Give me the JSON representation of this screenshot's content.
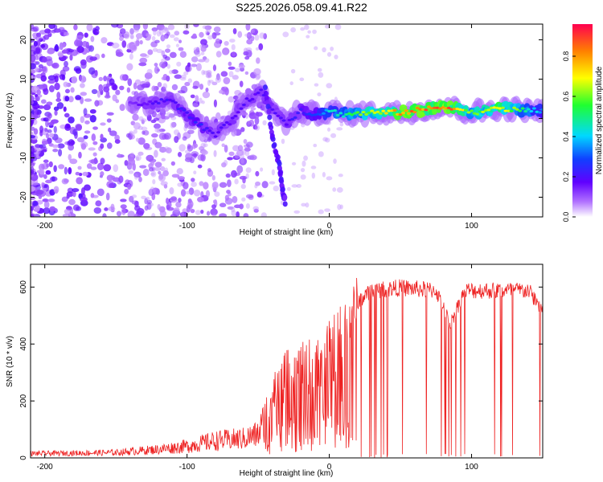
{
  "title": "S225.2026.058.09.41.R22",
  "chart_data": [
    {
      "type": "heatmap",
      "xlabel": "Height of straight line (km)",
      "ylabel": "Frequency (Hz)",
      "xlim": [
        -210,
        150
      ],
      "ylim": [
        -25,
        24
      ],
      "xticks": [
        -200,
        -100,
        0,
        100
      ],
      "yticks": [
        -20,
        -10,
        0,
        10,
        20
      ],
      "colorbar": {
        "label": "Normalized spectral amplitude",
        "range": [
          0,
          0.96
        ],
        "ticks": [
          0.0,
          0.2,
          0.4,
          0.6,
          0.8
        ]
      },
      "ridge": [
        {
          "x": -140,
          "y": 4,
          "v": 0.15
        },
        {
          "x": -125,
          "y": 4,
          "v": 0.2
        },
        {
          "x": -112,
          "y": 5,
          "v": 0.22
        },
        {
          "x": -100,
          "y": 1,
          "v": 0.25
        },
        {
          "x": -90,
          "y": -2,
          "v": 0.25
        },
        {
          "x": -80,
          "y": -4,
          "v": 0.2
        },
        {
          "x": -70,
          "y": -1,
          "v": 0.2
        },
        {
          "x": -60,
          "y": 4,
          "v": 0.2
        },
        {
          "x": -48,
          "y": 7,
          "v": 0.2
        },
        {
          "x": -40,
          "y": 2,
          "v": 0.2
        },
        {
          "x": -30,
          "y": -1,
          "v": 0.2
        },
        {
          "x": -20,
          "y": 2,
          "v": 0.25
        },
        {
          "x": -10,
          "y": 1,
          "v": 0.3
        },
        {
          "x": 0,
          "y": 2,
          "v": 0.45
        },
        {
          "x": 10,
          "y": 1,
          "v": 0.5
        },
        {
          "x": 30,
          "y": 1.5,
          "v": 0.7
        },
        {
          "x": 50,
          "y": 1.5,
          "v": 0.85
        },
        {
          "x": 70,
          "y": 2.5,
          "v": 0.9
        },
        {
          "x": 85,
          "y": 3,
          "v": 0.9
        },
        {
          "x": 100,
          "y": 1.5,
          "v": 0.6
        },
        {
          "x": 120,
          "y": 2.5,
          "v": 0.8
        },
        {
          "x": 140,
          "y": 2,
          "v": 0.5
        },
        {
          "x": 150,
          "y": 2,
          "v": 0.4
        }
      ],
      "branch": [
        {
          "x": -45,
          "y": 8
        },
        {
          "x": -40,
          "y": -5
        },
        {
          "x": -35,
          "y": -12
        },
        {
          "x": -33,
          "y": -18
        },
        {
          "x": -31,
          "y": -21
        }
      ]
    },
    {
      "type": "line",
      "xlabel": "Height of straight line (km)",
      "ylabel": "SNR (10 * v/v)",
      "xlim": [
        -210,
        150
      ],
      "ylim": [
        0,
        680
      ],
      "xticks": [
        -200,
        -100,
        0,
        100
      ],
      "yticks": [
        0,
        200,
        400,
        600
      ],
      "color": "#ee2222",
      "envelope": [
        {
          "x": -210,
          "y": 20
        },
        {
          "x": -150,
          "y": 25
        },
        {
          "x": -120,
          "y": 40
        },
        {
          "x": -100,
          "y": 55
        },
        {
          "x": -80,
          "y": 80
        },
        {
          "x": -60,
          "y": 90
        },
        {
          "x": -50,
          "y": 110
        },
        {
          "x": -40,
          "y": 260
        },
        {
          "x": -30,
          "y": 330
        },
        {
          "x": -20,
          "y": 350
        },
        {
          "x": -10,
          "y": 380
        },
        {
          "x": 0,
          "y": 420
        },
        {
          "x": 10,
          "y": 500
        },
        {
          "x": 20,
          "y": 560
        },
        {
          "x": 30,
          "y": 600
        },
        {
          "x": 50,
          "y": 610
        },
        {
          "x": 75,
          "y": 600
        },
        {
          "x": 85,
          "y": 480
        },
        {
          "x": 95,
          "y": 600
        },
        {
          "x": 140,
          "y": 600
        },
        {
          "x": 150,
          "y": 530
        }
      ]
    }
  ]
}
